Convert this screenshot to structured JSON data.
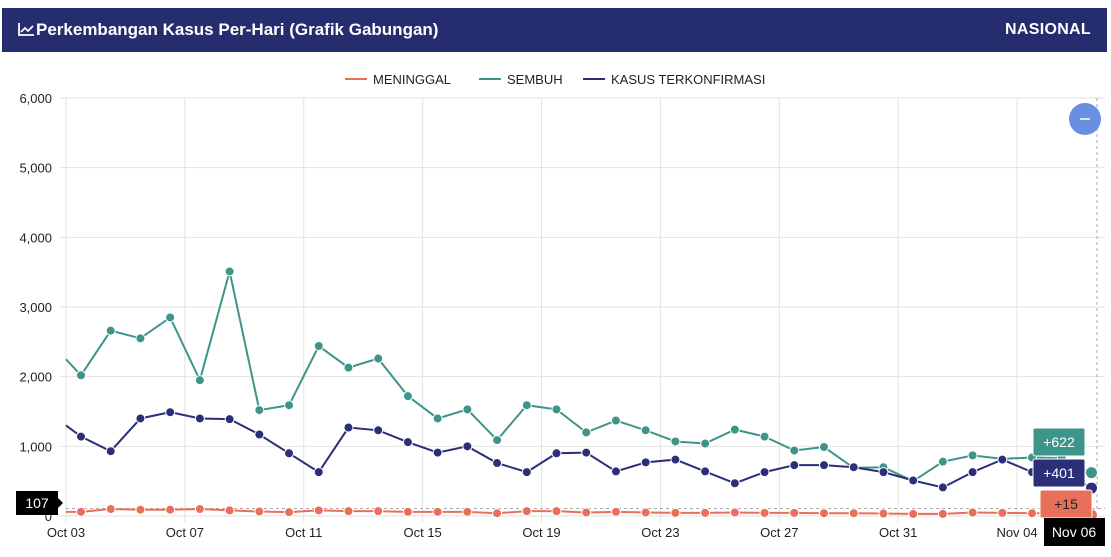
{
  "header": {
    "title": "Perkembangan Kasus Per-Hari (Grafik Gabungan)",
    "region": "NASIONAL",
    "icon": "line-chart-icon"
  },
  "zoom_button": {
    "icon": "minus-icon",
    "color": "#6b8fe0"
  },
  "chart_data": {
    "type": "line",
    "title": "Perkembangan Kasus Per-Hari (Grafik Gabungan)",
    "xlabel": "",
    "ylabel": "",
    "ylim": [
      0,
      6000
    ],
    "yticks": [
      "0",
      "1,000",
      "2,000",
      "3,000",
      "4,000",
      "5,000",
      "6,000"
    ],
    "xticks": [
      "Oct 03",
      "Oct 07",
      "Oct 11",
      "Oct 15",
      "Oct 19",
      "Oct 23",
      "Oct 27",
      "Oct 31",
      "Nov 04"
    ],
    "grid": true,
    "legend_position": "top-center",
    "x": [
      "Oct 03",
      "Oct 04",
      "Oct 05",
      "Oct 06",
      "Oct 07",
      "Oct 08",
      "Oct 09",
      "Oct 10",
      "Oct 11",
      "Oct 12",
      "Oct 13",
      "Oct 14",
      "Oct 15",
      "Oct 16",
      "Oct 17",
      "Oct 18",
      "Oct 19",
      "Oct 20",
      "Oct 21",
      "Oct 22",
      "Oct 23",
      "Oct 24",
      "Oct 25",
      "Oct 26",
      "Oct 27",
      "Oct 28",
      "Oct 29",
      "Oct 30",
      "Oct 31",
      "Nov 01",
      "Nov 02",
      "Nov 03",
      "Nov 04",
      "Nov 05",
      "Nov 06"
    ],
    "series": [
      {
        "name": "MENINGGAL",
        "color": "#e8705a",
        "start": 60,
        "values": [
          60,
          100,
          90,
          90,
          100,
          80,
          65,
          55,
          80,
          70,
          70,
          60,
          60,
          60,
          40,
          70,
          70,
          50,
          60,
          50,
          45,
          45,
          50,
          45,
          45,
          40,
          40,
          35,
          30,
          30,
          50,
          45,
          40,
          40,
          15
        ]
      },
      {
        "name": "SEMBUH",
        "color": "#3d9488",
        "start": 2250,
        "values": [
          2020,
          2660,
          2550,
          2850,
          1950,
          3510,
          1520,
          1590,
          2440,
          2130,
          2260,
          1720,
          1400,
          1530,
          1090,
          1590,
          1530,
          1200,
          1370,
          1230,
          1070,
          1040,
          1240,
          1140,
          940,
          990,
          690,
          700,
          500,
          780,
          870,
          820,
          840,
          830,
          622
        ]
      },
      {
        "name": "KASUS TERKONFIRMASI",
        "color": "#2b2f78",
        "start": 1300,
        "values": [
          1140,
          930,
          1400,
          1490,
          1400,
          1390,
          1170,
          900,
          630,
          1270,
          1230,
          1060,
          910,
          1000,
          760,
          630,
          900,
          910,
          640,
          770,
          810,
          640,
          470,
          630,
          730,
          730,
          700,
          630,
          510,
          410,
          630,
          810,
          630,
          660,
          401
        ]
      }
    ],
    "annotations": {
      "y_crosshair_value": "107",
      "x_crosshair_label": "Nov 06",
      "tooltips": [
        "+622",
        "+401",
        "+15"
      ]
    }
  }
}
